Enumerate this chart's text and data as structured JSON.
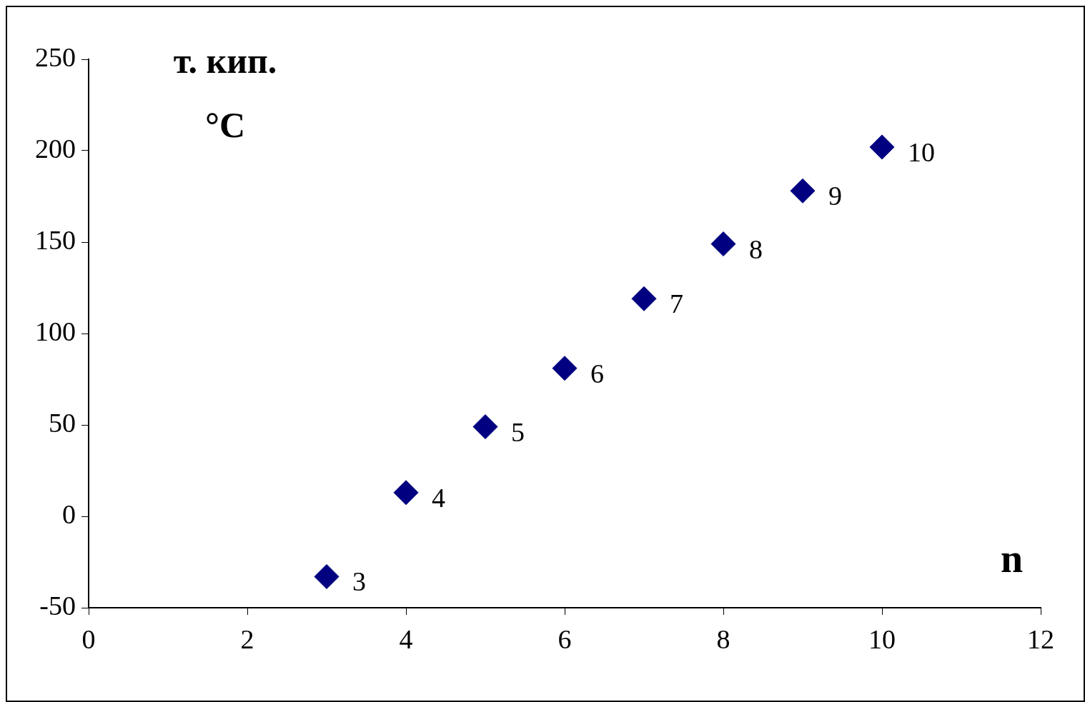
{
  "chart_data": {
    "type": "scatter",
    "ylabel": "т. кип. °C",
    "xlabel": "n",
    "x": [
      3,
      4,
      5,
      6,
      7,
      8,
      9,
      10
    ],
    "series": [
      {
        "color": "#000080",
        "values": [
          -33,
          13,
          49,
          81,
          119,
          149,
          178,
          202
        ]
      }
    ],
    "annotations": [
      {
        "text": "3",
        "x": 3,
        "y": -33
      },
      {
        "text": "4",
        "x": 4,
        "y": 13
      },
      {
        "text": "5",
        "x": 5,
        "y": 49
      },
      {
        "text": "6",
        "x": 6,
        "y": 81
      },
      {
        "text": "7",
        "x": 7,
        "y": 119
      },
      {
        "text": "8",
        "x": 8,
        "y": 149
      },
      {
        "text": "9",
        "x": 9,
        "y": 178
      },
      {
        "text": "10",
        "x": 10,
        "y": 202
      }
    ],
    "xlim": [
      0,
      12
    ],
    "xticks": [
      0,
      2,
      4,
      6,
      8,
      10,
      12
    ],
    "ylim": [
      -50,
      250
    ],
    "yticks": [
      -50,
      0,
      50,
      100,
      150,
      200,
      250
    ],
    "marker": "diamond",
    "legend": false
  }
}
